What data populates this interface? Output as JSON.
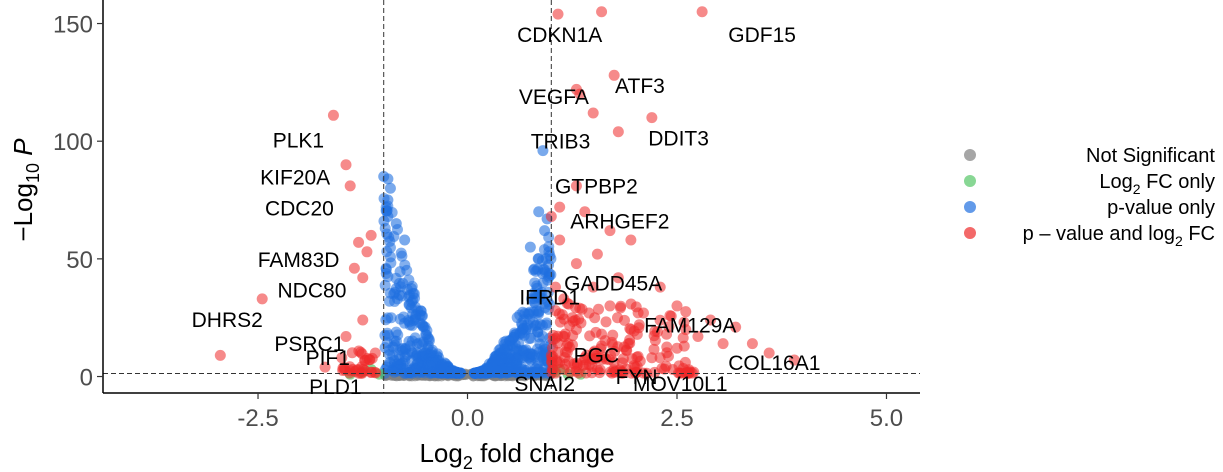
{
  "chart_data": {
    "type": "scatter",
    "xlabel": "Log2 fold change",
    "ylabel": "-Log10 P",
    "xlim": [
      -4.35,
      5.4
    ],
    "ylim": [
      -7,
      160
    ],
    "x_ticks": [
      -2.5,
      0,
      2.5,
      5
    ],
    "x_tick_labels": [
      "-2.5",
      "0.0",
      "2.5",
      "5.0"
    ],
    "y_ticks": [
      0,
      50,
      100,
      150
    ],
    "y_tick_labels": [
      "0",
      "50",
      "100",
      "150"
    ],
    "thresholds": {
      "log2fc": [
        -1,
        1
      ],
      "neg_log10_p": 1.3
    },
    "grid": false,
    "legend_position": "right",
    "legend": [
      {
        "label": "Not Significant",
        "color": "#808080"
      },
      {
        "label": "Log2 FC only",
        "color": "#56c667"
      },
      {
        "label": "p-value only",
        "color": "#1f6fe0"
      },
      {
        "label": "p – value and log2 FC",
        "color": "#ee2a2a"
      }
    ],
    "labeled_genes": [
      {
        "name": "CDKN1A",
        "x": 1.1,
        "y": 154
      },
      {
        "name": "GDF15",
        "x": 2.8,
        "y": 154
      },
      {
        "name": "ATF3",
        "x": 1.7,
        "y": 129
      },
      {
        "name": "VEGFA",
        "x": 1.15,
        "y": 120
      },
      {
        "name": "DDIT3",
        "x": 2.4,
        "y": 110
      },
      {
        "name": "TRIB3",
        "x": 1.05,
        "y": 96
      },
      {
        "name": "PLK1",
        "x": -1.6,
        "y": 110
      },
      {
        "name": "KIF20A",
        "x": -1.4,
        "y": 90
      },
      {
        "name": "CDC20",
        "x": -1.35,
        "y": 80
      },
      {
        "name": "GTPBP2",
        "x": 1.3,
        "y": 80
      },
      {
        "name": "ARHGEF2",
        "x": 1.4,
        "y": 65
      },
      {
        "name": "FAM83D",
        "x": -1.3,
        "y": 55
      },
      {
        "name": "GADD45A",
        "x": 1.5,
        "y": 45
      },
      {
        "name": "IFRD1",
        "x": 1.1,
        "y": 37
      },
      {
        "name": "NDC80",
        "x": -1.2,
        "y": 42
      },
      {
        "name": "DHRS2",
        "x": -2.45,
        "y": 33
      },
      {
        "name": "FAM129A",
        "x": 2.3,
        "y": 25
      },
      {
        "name": "PSRC1",
        "x": -1.35,
        "y": 16
      },
      {
        "name": "COL16A1",
        "x": 3.9,
        "y": 7
      },
      {
        "name": "PGC",
        "x": 1.3,
        "y": 11
      },
      {
        "name": "PIF1",
        "x": -1.25,
        "y": 7
      },
      {
        "name": "PLD1",
        "x": -1.1,
        "y": 2
      },
      {
        "name": "SNAI2",
        "x": 1.1,
        "y": 1.5
      },
      {
        "name": "FYN",
        "x": 1.6,
        "y": 2
      },
      {
        "name": "MOV10L1",
        "x": 2.3,
        "y": 1.5
      }
    ],
    "red_points": [
      [
        1.08,
        154
      ],
      [
        1.6,
        155
      ],
      [
        2.8,
        155
      ],
      [
        1.75,
        128
      ],
      [
        1.3,
        122
      ],
      [
        1.34,
        120
      ],
      [
        1.5,
        112
      ],
      [
        2.2,
        110
      ],
      [
        1.8,
        104
      ],
      [
        -1.6,
        111
      ],
      [
        -1.45,
        90
      ],
      [
        -1.4,
        81
      ],
      [
        1.3,
        81
      ],
      [
        1.1,
        72
      ],
      [
        1.4,
        70
      ],
      [
        1.0,
        68
      ],
      [
        1.7,
        62
      ],
      [
        1.95,
        58
      ],
      [
        1.1,
        58
      ],
      [
        -1.3,
        57
      ],
      [
        -1.15,
        60
      ],
      [
        -1.2,
        53
      ],
      [
        1.55,
        52
      ],
      [
        1.3,
        48
      ],
      [
        -1.35,
        46
      ],
      [
        -1.25,
        42
      ],
      [
        1.8,
        42
      ],
      [
        2.3,
        38
      ],
      [
        1.05,
        38
      ],
      [
        1.5,
        38
      ],
      [
        -2.45,
        33
      ],
      [
        2.5,
        30
      ],
      [
        1.7,
        30
      ],
      [
        1.05,
        28
      ],
      [
        2.1,
        27
      ],
      [
        2.9,
        24
      ],
      [
        3.2,
        21
      ],
      [
        -1.25,
        24
      ],
      [
        1.3,
        20
      ],
      [
        1.95,
        20
      ],
      [
        2.75,
        17
      ],
      [
        3.05,
        14
      ],
      [
        2.5,
        12
      ],
      [
        3.4,
        14
      ],
      [
        3.6,
        10
      ],
      [
        3.9,
        7
      ],
      [
        -2.95,
        9
      ],
      [
        -1.45,
        17
      ],
      [
        -1.1,
        10
      ],
      [
        1.2,
        14
      ],
      [
        1.6,
        13
      ],
      [
        1.9,
        11
      ],
      [
        2.2,
        8
      ],
      [
        1.4,
        8
      ],
      [
        1.75,
        6
      ],
      [
        1.1,
        6
      ],
      [
        2.0,
        4
      ],
      [
        1.3,
        4
      ],
      [
        1.55,
        3
      ],
      [
        -1.5,
        8
      ],
      [
        -1.7,
        4
      ],
      [
        -1.3,
        3
      ],
      [
        1.15,
        3
      ],
      [
        2.6,
        6
      ],
      [
        2.45,
        3
      ],
      [
        1.85,
        2
      ],
      [
        1.0,
        9
      ],
      [
        1.25,
        25
      ],
      [
        1.45,
        27
      ],
      [
        1.15,
        33
      ],
      [
        2.05,
        22
      ],
      [
        1.6,
        18
      ]
    ],
    "green_points": [
      [
        -1.25,
        2
      ],
      [
        -1.15,
        3
      ],
      [
        -1.05,
        1
      ],
      [
        1.05,
        2
      ],
      [
        1.2,
        1
      ],
      [
        1.1,
        3
      ],
      [
        1.35,
        1
      ],
      [
        -1.4,
        1
      ]
    ],
    "blue_ridge": {
      "left_envelope": [
        [
          -1.0,
          80
        ],
        [
          -0.9,
          70
        ],
        [
          -0.8,
          60
        ],
        [
          -0.7,
          45
        ],
        [
          -0.6,
          33
        ],
        [
          -0.5,
          22
        ],
        [
          -0.4,
          13
        ],
        [
          -0.3,
          7
        ],
        [
          -0.2,
          3
        ],
        [
          -0.1,
          1.5
        ]
      ],
      "right_envelope": [
        [
          0.1,
          1.5
        ],
        [
          0.2,
          3
        ],
        [
          0.3,
          7
        ],
        [
          0.4,
          13
        ],
        [
          0.5,
          20
        ],
        [
          0.6,
          28
        ],
        [
          0.7,
          38
        ],
        [
          0.8,
          48
        ],
        [
          0.9,
          60
        ],
        [
          1.0,
          70
        ]
      ]
    },
    "blue_extra_points": [
      [
        0.9,
        96
      ],
      [
        -0.95,
        84
      ],
      [
        -0.92,
        80
      ],
      [
        -1.0,
        85
      ],
      [
        -0.95,
        75
      ],
      [
        -0.85,
        65
      ],
      [
        0.95,
        67
      ],
      [
        0.92,
        62
      ],
      [
        0.85,
        70
      ],
      [
        -0.75,
        58
      ],
      [
        0.75,
        55
      ],
      [
        -0.95,
        68
      ]
    ]
  }
}
